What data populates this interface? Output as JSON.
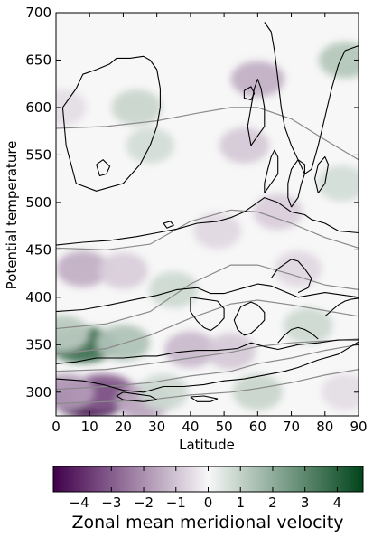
{
  "chart_data": [
    {
      "type": "heatmap",
      "title": "",
      "xlabel": "Latitude",
      "ylabel": "Potential temperature",
      "xlim": [
        0,
        90
      ],
      "ylim": [
        275,
        700
      ],
      "xticks": [
        0,
        10,
        20,
        30,
        40,
        50,
        60,
        70,
        80,
        90
      ],
      "yticks": [
        300,
        350,
        400,
        450,
        500,
        550,
        600,
        650,
        700
      ],
      "colormap": "PRGn",
      "color_low": "#40004b",
      "color_mid": "#f7f7f7",
      "color_high": "#00441b",
      "blobs": [
        {
          "lat": 10,
          "theta": 292,
          "value": -4.6
        },
        {
          "lat": 14,
          "theta": 300,
          "value": -3.0
        },
        {
          "lat": 3,
          "theta": 300,
          "value": -1.8
        },
        {
          "lat": 26,
          "theta": 290,
          "value": -1.6
        },
        {
          "lat": 8,
          "theta": 350,
          "value": 3.6
        },
        {
          "lat": 20,
          "theta": 352,
          "value": 1.4
        },
        {
          "lat": 2,
          "theta": 362,
          "value": 1.2
        },
        {
          "lat": 40,
          "theta": 345,
          "value": -1.2
        },
        {
          "lat": 52,
          "theta": 343,
          "value": -0.9
        },
        {
          "lat": 8,
          "theta": 430,
          "value": -1.4
        },
        {
          "lat": 20,
          "theta": 428,
          "value": -0.8
        },
        {
          "lat": 35,
          "theta": 408,
          "value": 0.8
        },
        {
          "lat": 60,
          "theta": 300,
          "value": 0.9
        },
        {
          "lat": 32,
          "theta": 300,
          "value": 0.8
        },
        {
          "lat": 75,
          "theta": 370,
          "value": 0.8
        },
        {
          "lat": 86,
          "theta": 650,
          "value": 1.3
        },
        {
          "lat": 85,
          "theta": 520,
          "value": 0.7
        },
        {
          "lat": 24,
          "theta": 600,
          "value": 0.9
        },
        {
          "lat": 28,
          "theta": 560,
          "value": 0.7
        },
        {
          "lat": 60,
          "theta": 630,
          "value": -1.4
        },
        {
          "lat": 56,
          "theta": 560,
          "value": -0.9
        },
        {
          "lat": 66,
          "theta": 490,
          "value": -0.8
        },
        {
          "lat": 48,
          "theta": 470,
          "value": -0.6
        },
        {
          "lat": 72,
          "theta": 430,
          "value": -0.6
        },
        {
          "lat": 86,
          "theta": 300,
          "value": -0.5
        },
        {
          "lat": 2,
          "theta": 600,
          "value": -0.5
        }
      ],
      "zero_contours": [
        [
          [
            0,
            385
          ],
          [
            8,
            387
          ],
          [
            16,
            392
          ],
          [
            24,
            398
          ],
          [
            30,
            402
          ],
          [
            36,
            408
          ],
          [
            42,
            410
          ],
          [
            46,
            404
          ],
          [
            50,
            404
          ],
          [
            56,
            410
          ],
          [
            60,
            414
          ],
          [
            64,
            412
          ],
          [
            72,
            400
          ],
          [
            80,
            405
          ],
          [
            86,
            402
          ],
          [
            90,
            400
          ]
        ],
        [
          [
            0,
            330
          ],
          [
            6,
            332
          ],
          [
            12,
            336
          ],
          [
            20,
            336
          ],
          [
            26,
            338
          ],
          [
            30,
            338
          ],
          [
            36,
            342
          ],
          [
            42,
            344
          ],
          [
            48,
            344
          ],
          [
            54,
            346
          ],
          [
            58,
            352
          ],
          [
            62,
            348
          ],
          [
            66,
            345
          ],
          [
            72,
            350
          ],
          [
            78,
            352
          ],
          [
            84,
            355
          ],
          [
            90,
            355
          ]
        ],
        [
          [
            90,
            353
          ],
          [
            84,
            340
          ],
          [
            78,
            334
          ],
          [
            72,
            326
          ],
          [
            68,
            322
          ],
          [
            62,
            318
          ],
          [
            56,
            314
          ],
          [
            50,
            312
          ],
          [
            44,
            308
          ],
          [
            38,
            306
          ],
          [
            32,
            306
          ],
          [
            26,
            300
          ],
          [
            20,
            302
          ],
          [
            14,
            308
          ],
          [
            8,
            312
          ],
          [
            0,
            314
          ]
        ],
        [
          [
            0,
            455
          ],
          [
            8,
            458
          ],
          [
            16,
            460
          ],
          [
            24,
            464
          ],
          [
            30,
            468
          ],
          [
            36,
            472
          ],
          [
            42,
            478
          ],
          [
            48,
            480
          ],
          [
            52,
            484
          ],
          [
            56,
            490
          ],
          [
            60,
            500
          ],
          [
            62,
            505
          ],
          [
            66,
            500
          ],
          [
            70,
            490
          ],
          [
            74,
            487
          ],
          [
            76,
            482
          ],
          [
            80,
            478
          ],
          [
            84,
            470
          ],
          [
            90,
            468
          ]
        ],
        [
          [
            2,
            600
          ],
          [
            6,
            620
          ],
          [
            8,
            635
          ],
          [
            12,
            640
          ],
          [
            16,
            646
          ],
          [
            18,
            652
          ],
          [
            22,
            652
          ],
          [
            26,
            654
          ],
          [
            28,
            650
          ],
          [
            30,
            640
          ],
          [
            31,
            620
          ],
          [
            31,
            600
          ],
          [
            30,
            580
          ],
          [
            28,
            560
          ],
          [
            25,
            540
          ],
          [
            20,
            520
          ],
          [
            12,
            512
          ],
          [
            6,
            520
          ],
          [
            3,
            560
          ],
          [
            2,
            600
          ]
        ],
        [
          [
            62,
            690
          ],
          [
            64,
            680
          ],
          [
            65,
            660
          ],
          [
            66,
            630
          ],
          [
            67,
            600
          ],
          [
            68,
            580
          ],
          [
            70,
            560
          ],
          [
            72,
            545
          ],
          [
            74,
            530
          ],
          [
            76,
            535
          ],
          [
            78,
            560
          ],
          [
            80,
            590
          ],
          [
            82,
            620
          ],
          [
            84,
            645
          ],
          [
            86,
            660
          ],
          [
            90,
            665
          ]
        ],
        [
          [
            58,
            560
          ],
          [
            60,
            570
          ],
          [
            62,
            580
          ],
          [
            62,
            600
          ],
          [
            61,
            620
          ],
          [
            60,
            630
          ],
          [
            59,
            620
          ],
          [
            58,
            600
          ],
          [
            57,
            580
          ],
          [
            58,
            560
          ]
        ],
        [
          [
            62,
            510
          ],
          [
            64,
            520
          ],
          [
            66,
            530
          ],
          [
            66,
            548
          ],
          [
            65,
            555
          ],
          [
            64,
            548
          ],
          [
            63,
            535
          ],
          [
            62,
            520
          ],
          [
            62,
            510
          ]
        ],
        [
          [
            70,
            495
          ],
          [
            72,
            505
          ],
          [
            73,
            520
          ],
          [
            74,
            530
          ],
          [
            74,
            540
          ],
          [
            72,
            545
          ],
          [
            70,
            535
          ],
          [
            69,
            520
          ],
          [
            69,
            505
          ],
          [
            70,
            495
          ]
        ],
        [
          [
            78,
            510
          ],
          [
            80,
            520
          ],
          [
            81,
            540
          ],
          [
            80,
            548
          ],
          [
            78,
            540
          ],
          [
            77,
            525
          ],
          [
            78,
            510
          ]
        ],
        [
          [
            64,
            420
          ],
          [
            66,
            430
          ],
          [
            68,
            435
          ],
          [
            70,
            440
          ],
          [
            72,
            438
          ],
          [
            74,
            430
          ],
          [
            76,
            420
          ],
          [
            75,
            410
          ],
          [
            72,
            405
          ]
        ],
        [
          [
            55,
            390
          ],
          [
            58,
            395
          ],
          [
            60,
            392
          ],
          [
            62,
            384
          ],
          [
            62,
            376
          ],
          [
            60,
            368
          ],
          [
            58,
            362
          ],
          [
            56,
            360
          ],
          [
            54,
            366
          ],
          [
            53,
            376
          ],
          [
            55,
            390
          ]
        ],
        [
          [
            66,
            352
          ],
          [
            68,
            360
          ],
          [
            70,
            366
          ],
          [
            72,
            368
          ],
          [
            74,
            366
          ],
          [
            76,
            362
          ],
          [
            78,
            356
          ]
        ],
        [
          [
            80,
            380
          ],
          [
            82,
            386
          ],
          [
            84,
            392
          ],
          [
            86,
            396
          ],
          [
            88,
            398
          ],
          [
            90,
            399
          ]
        ],
        [
          [
            40,
            400
          ],
          [
            44,
            398
          ],
          [
            48,
            396
          ],
          [
            50,
            388
          ],
          [
            50,
            378
          ],
          [
            48,
            370
          ],
          [
            46,
            365
          ],
          [
            44,
            368
          ],
          [
            42,
            375
          ],
          [
            40,
            385
          ],
          [
            40,
            400
          ]
        ],
        [
          [
            12,
            540
          ],
          [
            14,
            545
          ],
          [
            16,
            538
          ],
          [
            15,
            530
          ],
          [
            13,
            528
          ],
          [
            12,
            540
          ]
        ],
        [
          [
            56,
            618
          ],
          [
            58,
            622
          ],
          [
            59,
            615
          ],
          [
            58,
            608
          ],
          [
            56,
            610
          ],
          [
            56,
            618
          ]
        ],
        [
          [
            32,
            478
          ],
          [
            34,
            480
          ],
          [
            35,
            476
          ],
          [
            33,
            473
          ],
          [
            32,
            478
          ]
        ],
        [
          [
            20,
            300
          ],
          [
            24,
            298
          ],
          [
            28,
            296
          ],
          [
            30,
            292
          ],
          [
            26,
            290
          ],
          [
            20,
            292
          ],
          [
            18,
            296
          ],
          [
            20,
            300
          ]
        ],
        [
          [
            40,
            295
          ],
          [
            44,
            296
          ],
          [
            48,
            293
          ],
          [
            46,
            290
          ],
          [
            42,
            290
          ],
          [
            40,
            295
          ]
        ]
      ],
      "isentropes": [
        [
          [
            0,
            578
          ],
          [
            15,
            580
          ],
          [
            30,
            586
          ],
          [
            42,
            594
          ],
          [
            52,
            600
          ],
          [
            60,
            600
          ],
          [
            70,
            588
          ],
          [
            80,
            566
          ],
          [
            90,
            545
          ]
        ],
        [
          [
            0,
            452
          ],
          [
            15,
            450
          ],
          [
            28,
            456
          ],
          [
            40,
            480
          ],
          [
            52,
            492
          ],
          [
            60,
            490
          ],
          [
            70,
            478
          ],
          [
            80,
            463
          ],
          [
            90,
            452
          ]
        ],
        [
          [
            0,
            367
          ],
          [
            15,
            372
          ],
          [
            28,
            385
          ],
          [
            40,
            414
          ],
          [
            52,
            434
          ],
          [
            60,
            434
          ],
          [
            70,
            424
          ],
          [
            80,
            413
          ],
          [
            90,
            408
          ]
        ],
        [
          [
            0,
            340
          ],
          [
            15,
            346
          ],
          [
            28,
            360
          ],
          [
            40,
            378
          ],
          [
            52,
            393
          ],
          [
            60,
            397
          ],
          [
            70,
            392
          ],
          [
            80,
            386
          ],
          [
            90,
            380
          ]
        ],
        [
          [
            0,
            322
          ],
          [
            15,
            324
          ],
          [
            28,
            330
          ],
          [
            40,
            336
          ],
          [
            52,
            342
          ],
          [
            60,
            348
          ],
          [
            70,
            352
          ],
          [
            80,
            354
          ],
          [
            90,
            356
          ]
        ],
        [
          [
            0,
            303
          ],
          [
            15,
            306
          ],
          [
            28,
            310
          ],
          [
            40,
            317
          ],
          [
            52,
            322
          ],
          [
            60,
            330
          ],
          [
            70,
            336
          ],
          [
            80,
            344
          ],
          [
            90,
            350
          ]
        ],
        [
          [
            0,
            288
          ],
          [
            15,
            290
          ],
          [
            28,
            292
          ],
          [
            40,
            297
          ],
          [
            52,
            300
          ],
          [
            60,
            304
          ],
          [
            70,
            310
          ],
          [
            80,
            318
          ],
          [
            90,
            324
          ]
        ]
      ]
    },
    {
      "type": "colorbar",
      "label": "Zonal mean meridional velocity",
      "vmin": -4.8,
      "vmax": 4.8,
      "ticks": [
        -4,
        -3,
        -2,
        -1,
        0,
        1,
        2,
        3,
        4
      ],
      "tick_labels": [
        "−4",
        "−3",
        "−2",
        "−1",
        "0",
        "1",
        "2",
        "3",
        "4"
      ]
    }
  ]
}
